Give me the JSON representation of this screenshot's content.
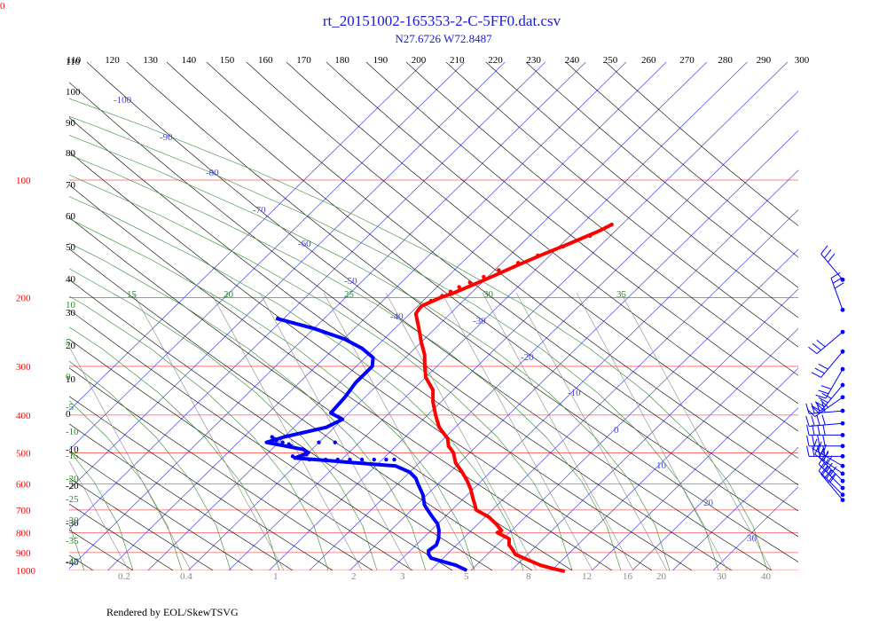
{
  "title": "rt_20151002-165353-2-C-5FF0.dat.csv",
  "subtitle": "N27.6726 W72.8487",
  "footer": "Rendered by EOL/SkewTSVG",
  "corner_label": "0",
  "colors": {
    "title": "#1a1ad6",
    "isobar": "#ff5a5a",
    "isotherm": "#4747e8",
    "dry_adiabat": "#000000",
    "moist_adiabat": "#2e8a2e",
    "mixing_ratio": "#888888",
    "temperature": "#ff0000",
    "dewpoint": "#0000ff",
    "wind": "#0000ff"
  },
  "chart_data": {
    "type": "skew-t",
    "pressure_levels": [
      100,
      200,
      300,
      400,
      500,
      600,
      700,
      800,
      900,
      1000
    ],
    "isotherm_labels": [
      -100,
      -90,
      -80,
      -70,
      -60,
      -50,
      -40,
      -30,
      -20,
      -10,
      0,
      10,
      20,
      30
    ],
    "theta_labels_top": [
      110,
      120,
      130,
      140,
      150,
      160,
      170,
      180,
      190,
      200,
      210,
      220,
      230,
      240,
      250,
      260,
      270,
      280,
      290,
      300
    ],
    "theta_labels_left": [
      110,
      100,
      90,
      80,
      70,
      60,
      50,
      40,
      30,
      20,
      10,
      0,
      -10,
      -20,
      -30,
      -40
    ],
    "moist_labels_top": [
      15,
      20,
      25,
      30,
      35
    ],
    "moist_labels_left": [
      10,
      5,
      0,
      -5,
      -10,
      -15,
      -20,
      -25,
      -30,
      -35,
      -40
    ],
    "mixing_ratio_labels": [
      "0.2",
      "0.4",
      "1",
      "2",
      "3",
      "5",
      "8",
      "12",
      "16",
      "20",
      "30",
      "40"
    ],
    "temperature": [
      {
        "p": 130,
        "t": -52.5
      },
      {
        "p": 135,
        "t": -54
      },
      {
        "p": 145,
        "t": -58
      },
      {
        "p": 155,
        "t": -62
      },
      {
        "p": 165,
        "t": -65.5
      },
      {
        "p": 175,
        "t": -68.5
      },
      {
        "p": 185,
        "t": -71.5
      },
      {
        "p": 195,
        "t": -74.5
      },
      {
        "p": 200,
        "t": -76.5
      },
      {
        "p": 210,
        "t": -79
      },
      {
        "p": 213,
        "t": -79
      },
      {
        "p": 220,
        "t": -78.5
      },
      {
        "p": 240,
        "t": -74
      },
      {
        "p": 260,
        "t": -70
      },
      {
        "p": 280,
        "t": -66
      },
      {
        "p": 300,
        "t": -63
      },
      {
        "p": 320,
        "t": -60
      },
      {
        "p": 345,
        "t": -55
      },
      {
        "p": 370,
        "t": -52
      },
      {
        "p": 400,
        "t": -48
      },
      {
        "p": 430,
        "t": -44
      },
      {
        "p": 460,
        "t": -39
      },
      {
        "p": 480,
        "t": -37
      },
      {
        "p": 500,
        "t": -34
      },
      {
        "p": 530,
        "t": -31
      },
      {
        "p": 560,
        "t": -27
      },
      {
        "p": 590,
        "t": -23.5
      },
      {
        "p": 620,
        "t": -20.5
      },
      {
        "p": 650,
        "t": -18
      },
      {
        "p": 680,
        "t": -15.5
      },
      {
        "p": 700,
        "t": -14
      },
      {
        "p": 730,
        "t": -9
      },
      {
        "p": 760,
        "t": -5.5
      },
      {
        "p": 790,
        "t": -2.5
      },
      {
        "p": 800,
        "t": -3
      },
      {
        "p": 830,
        "t": 1.5
      },
      {
        "p": 860,
        "t": 3
      },
      {
        "p": 890,
        "t": 5.5
      },
      {
        "p": 910,
        "t": 7
      },
      {
        "p": 930,
        "t": 10
      },
      {
        "p": 950,
        "t": 13
      },
      {
        "p": 970,
        "t": 16
      },
      {
        "p": 990,
        "t": 20
      },
      {
        "p": 1005,
        "t": 23.5
      }
    ],
    "dewpoint": [
      {
        "p": 226,
        "td": -112
      },
      {
        "p": 240,
        "td": -100
      },
      {
        "p": 255,
        "td": -90
      },
      {
        "p": 270,
        "td": -83
      },
      {
        "p": 285,
        "td": -78
      },
      {
        "p": 300,
        "td": -76
      },
      {
        "p": 330,
        "td": -76
      },
      {
        "p": 360,
        "td": -75
      },
      {
        "p": 395,
        "td": -74.5
      },
      {
        "p": 410,
        "td": -70
      },
      {
        "p": 430,
        "td": -72
      },
      {
        "p": 455,
        "td": -80
      },
      {
        "p": 470,
        "td": -83
      },
      {
        "p": 490,
        "td": -72
      },
      {
        "p": 500,
        "td": -70
      },
      {
        "p": 515,
        "td": -72
      },
      {
        "p": 540,
        "td": -45
      },
      {
        "p": 560,
        "td": -40
      },
      {
        "p": 580,
        "td": -37
      },
      {
        "p": 600,
        "td": -35
      },
      {
        "p": 640,
        "td": -31
      },
      {
        "p": 680,
        "td": -28
      },
      {
        "p": 700,
        "td": -26
      },
      {
        "p": 730,
        "td": -23
      },
      {
        "p": 760,
        "td": -20
      },
      {
        "p": 790,
        "td": -18
      },
      {
        "p": 830,
        "td": -16
      },
      {
        "p": 860,
        "td": -15
      },
      {
        "p": 890,
        "td": -15.5
      },
      {
        "p": 910,
        "td": -14.5
      },
      {
        "p": 930,
        "td": -13
      },
      {
        "p": 950,
        "td": -9
      },
      {
        "p": 970,
        "td": -5
      },
      {
        "p": 1000,
        "td": -1
      }
    ],
    "temperature_dots": [
      {
        "p": 130,
        "t": -52.5
      },
      {
        "p": 139,
        "t": -55
      },
      {
        "p": 148,
        "t": -59
      },
      {
        "p": 156,
        "t": -63
      },
      {
        "p": 163,
        "t": -66
      },
      {
        "p": 170,
        "t": -69
      },
      {
        "p": 177,
        "t": -71
      },
      {
        "p": 183,
        "t": -73
      },
      {
        "p": 188,
        "t": -74.5
      },
      {
        "p": 193,
        "t": -75.5
      },
      {
        "p": 198,
        "t": -76.5
      },
      {
        "p": 204,
        "t": -78
      }
    ],
    "dewpoint_dots": [
      {
        "p": 455,
        "td": -83
      },
      {
        "p": 460,
        "td": -82
      },
      {
        "p": 465,
        "td": -81
      },
      {
        "p": 470,
        "td": -79
      },
      {
        "p": 475,
        "td": -77
      },
      {
        "p": 480,
        "td": -76
      },
      {
        "p": 470,
        "td": -70
      },
      {
        "p": 470,
        "td": -66
      },
      {
        "p": 505,
        "td": -70
      },
      {
        "p": 510,
        "td": -73
      },
      {
        "p": 515,
        "td": -72
      },
      {
        "p": 520,
        "td": -68
      },
      {
        "p": 520,
        "td": -64
      },
      {
        "p": 520,
        "td": -61
      },
      {
        "p": 520,
        "td": -58
      },
      {
        "p": 520,
        "td": -55
      },
      {
        "p": 520,
        "td": -52
      },
      {
        "p": 520,
        "td": -49
      },
      {
        "p": 520,
        "td": -47
      }
    ],
    "wind_barbs": [
      {
        "p": 180,
        "dir": 320,
        "spd": 30
      },
      {
        "p": 215,
        "dir": 340,
        "spd": 25
      },
      {
        "p": 245,
        "dir": 230,
        "spd": 25
      },
      {
        "p": 275,
        "dir": 220,
        "spd": 25
      },
      {
        "p": 305,
        "dir": 210,
        "spd": 30
      },
      {
        "p": 335,
        "dir": 220,
        "spd": 35
      },
      {
        "p": 360,
        "dir": 235,
        "spd": 40
      },
      {
        "p": 390,
        "dir": 265,
        "spd": 40
      },
      {
        "p": 420,
        "dir": 265,
        "spd": 40
      },
      {
        "p": 450,
        "dir": 270,
        "spd": 40
      },
      {
        "p": 480,
        "dir": 270,
        "spd": 35
      },
      {
        "p": 510,
        "dir": 270,
        "spd": 35
      },
      {
        "p": 540,
        "dir": 300,
        "spd": 25
      },
      {
        "p": 565,
        "dir": 305,
        "spd": 30
      },
      {
        "p": 590,
        "dir": 315,
        "spd": 30
      },
      {
        "p": 615,
        "dir": 315,
        "spd": 35
      },
      {
        "p": 640,
        "dir": 315,
        "spd": 35
      },
      {
        "p": 660,
        "dir": 320,
        "spd": 30
      }
    ]
  }
}
